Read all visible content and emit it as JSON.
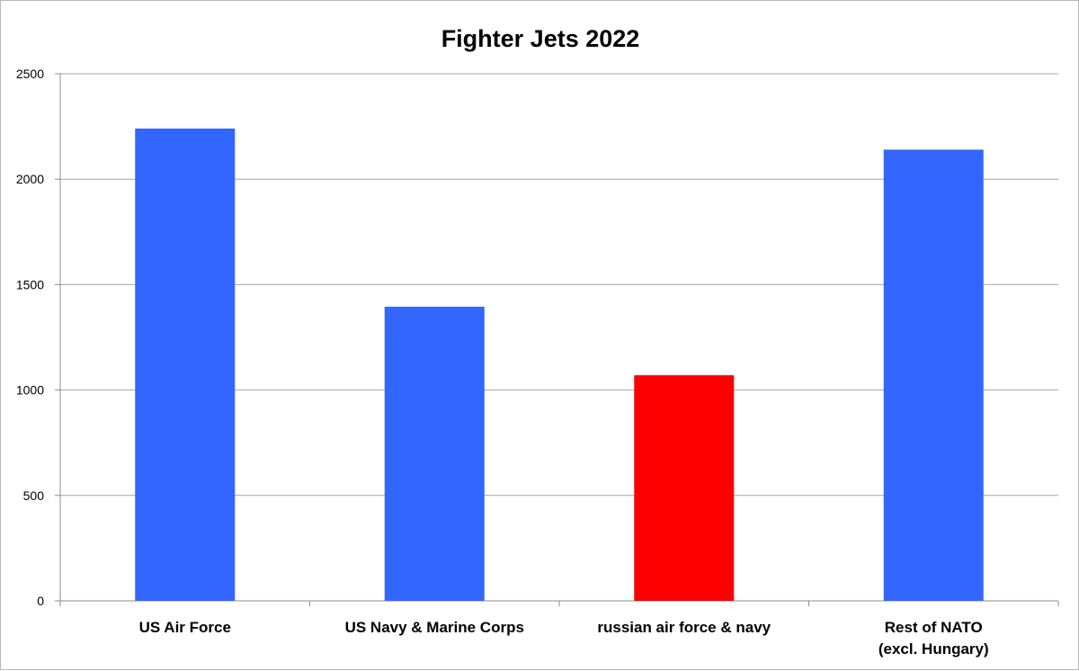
{
  "chart_data": {
    "type": "bar",
    "title": "Fighter Jets 2022",
    "xlabel": "",
    "ylabel": "",
    "ylim": [
      0,
      2500
    ],
    "yticks": [
      0,
      500,
      1000,
      1500,
      2000,
      2500
    ],
    "grid": true,
    "legend": "none",
    "categories": [
      [
        "US Air Force"
      ],
      [
        "US Navy & Marine Corps"
      ],
      [
        "russian air force & navy"
      ],
      [
        "Rest of NATO",
        "(excl. Hungary)"
      ]
    ],
    "values": [
      2240,
      1395,
      1070,
      2140
    ],
    "bar_colors": [
      "#3366ff",
      "#3366ff",
      "#ff0000",
      "#3366ff"
    ]
  },
  "colors": {
    "gridline": "#a6a6a6",
    "axis": "#8c8c8c",
    "border": "#b8b8b8"
  }
}
